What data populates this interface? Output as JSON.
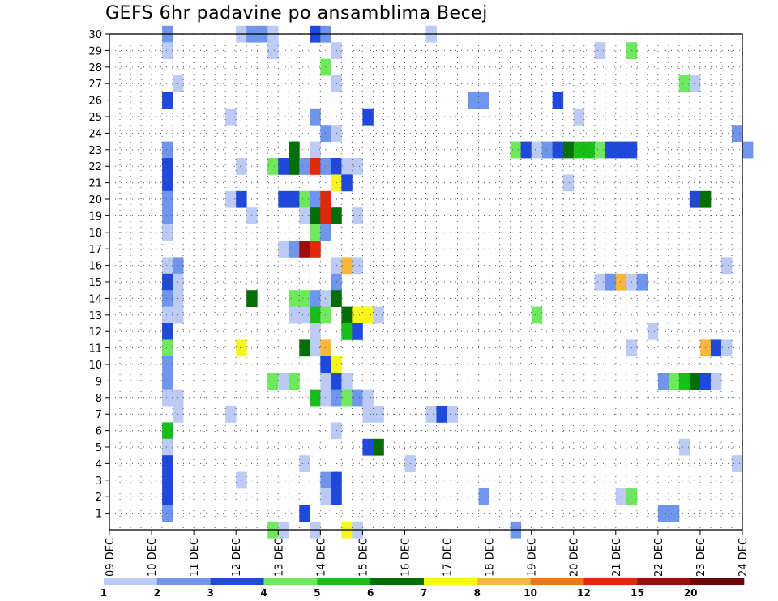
{
  "chart_data": {
    "type": "heatmap",
    "title": "GEFS 6hr padavine po ansamblima Becej",
    "x_tick_labels": [
      "09 DEC",
      "10 DEC",
      "11 DEC",
      "12 DEC",
      "13 DEC",
      "14 DEC",
      "15 DEC",
      "16 DEC",
      "17 DEC",
      "18 DEC",
      "19 DEC",
      "20 DEC",
      "21 DEC",
      "22 DEC",
      "23 DEC",
      "24 DEC"
    ],
    "xlim": [
      0,
      60
    ],
    "y_tick_labels": [
      "1",
      "2",
      "3",
      "4",
      "5",
      "6",
      "7",
      "8",
      "9",
      "10",
      "11",
      "12",
      "13",
      "14",
      "15",
      "16",
      "17",
      "18",
      "19",
      "20",
      "21",
      "22",
      "23",
      "24",
      "25",
      "26",
      "27",
      "28",
      "29",
      "30"
    ],
    "ylim": [
      0,
      30
    ],
    "grid": true,
    "colorbar": {
      "colors": [
        "#bccbf6",
        "#6f95ec",
        "#1f49dd",
        "#6ee85c",
        "#19bf19",
        "#066e06",
        "#f6f61a",
        "#f7b73c",
        "#f4740e",
        "#dc2a0b",
        "#9f0c0c",
        "#6d0606"
      ],
      "labels": [
        "1",
        "2",
        "3",
        "4",
        "5",
        "6",
        "7",
        "8",
        "10",
        "12",
        "15",
        "20"
      ]
    },
    "cells": [
      [
        5,
        30,
        1
      ],
      [
        12,
        30,
        0
      ],
      [
        13,
        30,
        1
      ],
      [
        14,
        30,
        1
      ],
      [
        15,
        30,
        0
      ],
      [
        19,
        30,
        2
      ],
      [
        20,
        30,
        1
      ],
      [
        30,
        30,
        0
      ],
      [
        5,
        29,
        0
      ],
      [
        15,
        29,
        0
      ],
      [
        21,
        29,
        0
      ],
      [
        46,
        29,
        0
      ],
      [
        49,
        29,
        3
      ],
      [
        20,
        28,
        3
      ],
      [
        6,
        27,
        0
      ],
      [
        21,
        27,
        0
      ],
      [
        54,
        27,
        3
      ],
      [
        55,
        27,
        0
      ],
      [
        5,
        26,
        2
      ],
      [
        34,
        26,
        1
      ],
      [
        35,
        26,
        1
      ],
      [
        42,
        26,
        2
      ],
      [
        11,
        25,
        0
      ],
      [
        19,
        25,
        1
      ],
      [
        24,
        25,
        2
      ],
      [
        44,
        25,
        0
      ],
      [
        20,
        24,
        1
      ],
      [
        21,
        24,
        0
      ],
      [
        59,
        24,
        1
      ],
      [
        5,
        23,
        1
      ],
      [
        17,
        23,
        5
      ],
      [
        19,
        23,
        0
      ],
      [
        38,
        23,
        3
      ],
      [
        39,
        23,
        2
      ],
      [
        40,
        23,
        0
      ],
      [
        41,
        23,
        1
      ],
      [
        42,
        23,
        2
      ],
      [
        43,
        23,
        5
      ],
      [
        44,
        23,
        4
      ],
      [
        45,
        23,
        4
      ],
      [
        46,
        23,
        3
      ],
      [
        47,
        23,
        2
      ],
      [
        48,
        23,
        2
      ],
      [
        49,
        23,
        2
      ],
      [
        60,
        23,
        1
      ],
      [
        5,
        22,
        2
      ],
      [
        12,
        22,
        0
      ],
      [
        15,
        22,
        3
      ],
      [
        16,
        22,
        2
      ],
      [
        17,
        22,
        5
      ],
      [
        18,
        22,
        1
      ],
      [
        19,
        22,
        9
      ],
      [
        20,
        22,
        1
      ],
      [
        21,
        22,
        2
      ],
      [
        22,
        22,
        0
      ],
      [
        23,
        22,
        0
      ],
      [
        5,
        21,
        2
      ],
      [
        21,
        21,
        6
      ],
      [
        22,
        21,
        2
      ],
      [
        43,
        21,
        0
      ],
      [
        5,
        20,
        1
      ],
      [
        11,
        20,
        0
      ],
      [
        12,
        20,
        2
      ],
      [
        16,
        20,
        2
      ],
      [
        17,
        20,
        2
      ],
      [
        18,
        20,
        3
      ],
      [
        19,
        20,
        1
      ],
      [
        20,
        20,
        9
      ],
      [
        55,
        20,
        2
      ],
      [
        56,
        20,
        5
      ],
      [
        5,
        19,
        1
      ],
      [
        13,
        19,
        0
      ],
      [
        18,
        19,
        0
      ],
      [
        19,
        19,
        5
      ],
      [
        20,
        19,
        9
      ],
      [
        21,
        19,
        5
      ],
      [
        23,
        19,
        0
      ],
      [
        5,
        18,
        0
      ],
      [
        19,
        18,
        3
      ],
      [
        20,
        18,
        1
      ],
      [
        16,
        17,
        0
      ],
      [
        17,
        17,
        1
      ],
      [
        18,
        17,
        10
      ],
      [
        19,
        17,
        9
      ],
      [
        5,
        16,
        0
      ],
      [
        6,
        16,
        1
      ],
      [
        21,
        16,
        0
      ],
      [
        22,
        16,
        7
      ],
      [
        23,
        16,
        0
      ],
      [
        58,
        16,
        0
      ],
      [
        5,
        15,
        2
      ],
      [
        6,
        15,
        0
      ],
      [
        21,
        15,
        1
      ],
      [
        46,
        15,
        0
      ],
      [
        47,
        15,
        1
      ],
      [
        48,
        15,
        7
      ],
      [
        49,
        15,
        0
      ],
      [
        50,
        15,
        1
      ],
      [
        5,
        14,
        1
      ],
      [
        6,
        14,
        0
      ],
      [
        13,
        14,
        5
      ],
      [
        17,
        14,
        3
      ],
      [
        18,
        14,
        3
      ],
      [
        19,
        14,
        1
      ],
      [
        20,
        14,
        0
      ],
      [
        21,
        14,
        5
      ],
      [
        5,
        13,
        0
      ],
      [
        6,
        13,
        0
      ],
      [
        17,
        13,
        0
      ],
      [
        18,
        13,
        0
      ],
      [
        19,
        13,
        4
      ],
      [
        20,
        13,
        3
      ],
      [
        22,
        13,
        5
      ],
      [
        23,
        13,
        6
      ],
      [
        24,
        13,
        6
      ],
      [
        25,
        13,
        0
      ],
      [
        40,
        13,
        3
      ],
      [
        5,
        12,
        2
      ],
      [
        19,
        12,
        0
      ],
      [
        22,
        12,
        4
      ],
      [
        23,
        12,
        2
      ],
      [
        51,
        12,
        0
      ],
      [
        5,
        11,
        3
      ],
      [
        12,
        11,
        6
      ],
      [
        18,
        11,
        5
      ],
      [
        19,
        11,
        0
      ],
      [
        20,
        11,
        7
      ],
      [
        49,
        11,
        0
      ],
      [
        56,
        11,
        7
      ],
      [
        57,
        11,
        2
      ],
      [
        58,
        11,
        0
      ],
      [
        5,
        10,
        1
      ],
      [
        20,
        10,
        2
      ],
      [
        21,
        10,
        6
      ],
      [
        5,
        9,
        1
      ],
      [
        15,
        9,
        3
      ],
      [
        16,
        9,
        0
      ],
      [
        17,
        9,
        3
      ],
      [
        20,
        9,
        0
      ],
      [
        21,
        9,
        2
      ],
      [
        22,
        9,
        0
      ],
      [
        52,
        9,
        1
      ],
      [
        53,
        9,
        3
      ],
      [
        54,
        9,
        4
      ],
      [
        55,
        9,
        5
      ],
      [
        56,
        9,
        2
      ],
      [
        57,
        9,
        0
      ],
      [
        5,
        8,
        0
      ],
      [
        6,
        8,
        0
      ],
      [
        19,
        8,
        4
      ],
      [
        20,
        8,
        0
      ],
      [
        21,
        8,
        1
      ],
      [
        22,
        8,
        3
      ],
      [
        23,
        8,
        1
      ],
      [
        24,
        8,
        0
      ],
      [
        6,
        7,
        0
      ],
      [
        11,
        7,
        0
      ],
      [
        24,
        7,
        0
      ],
      [
        25,
        7,
        0
      ],
      [
        30,
        7,
        0
      ],
      [
        31,
        7,
        2
      ],
      [
        32,
        7,
        0
      ],
      [
        5,
        6,
        4
      ],
      [
        21,
        6,
        0
      ],
      [
        5,
        5,
        0
      ],
      [
        24,
        5,
        2
      ],
      [
        25,
        5,
        5
      ],
      [
        54,
        5,
        0
      ],
      [
        5,
        4,
        2
      ],
      [
        18,
        4,
        0
      ],
      [
        28,
        4,
        0
      ],
      [
        59,
        4,
        0
      ],
      [
        5,
        3,
        2
      ],
      [
        12,
        3,
        0
      ],
      [
        20,
        3,
        1
      ],
      [
        21,
        3,
        2
      ],
      [
        5,
        2,
        2
      ],
      [
        20,
        2,
        0
      ],
      [
        21,
        2,
        2
      ],
      [
        35,
        2,
        1
      ],
      [
        48,
        2,
        0
      ],
      [
        49,
        2,
        3
      ],
      [
        5,
        1,
        1
      ],
      [
        18,
        1,
        2
      ],
      [
        52,
        1,
        1
      ],
      [
        53,
        1,
        1
      ],
      [
        15,
        0,
        3
      ],
      [
        16,
        0,
        0
      ],
      [
        19,
        0,
        0
      ],
      [
        22,
        0,
        6
      ],
      [
        23,
        0,
        0
      ],
      [
        38,
        0,
        1
      ]
    ]
  }
}
